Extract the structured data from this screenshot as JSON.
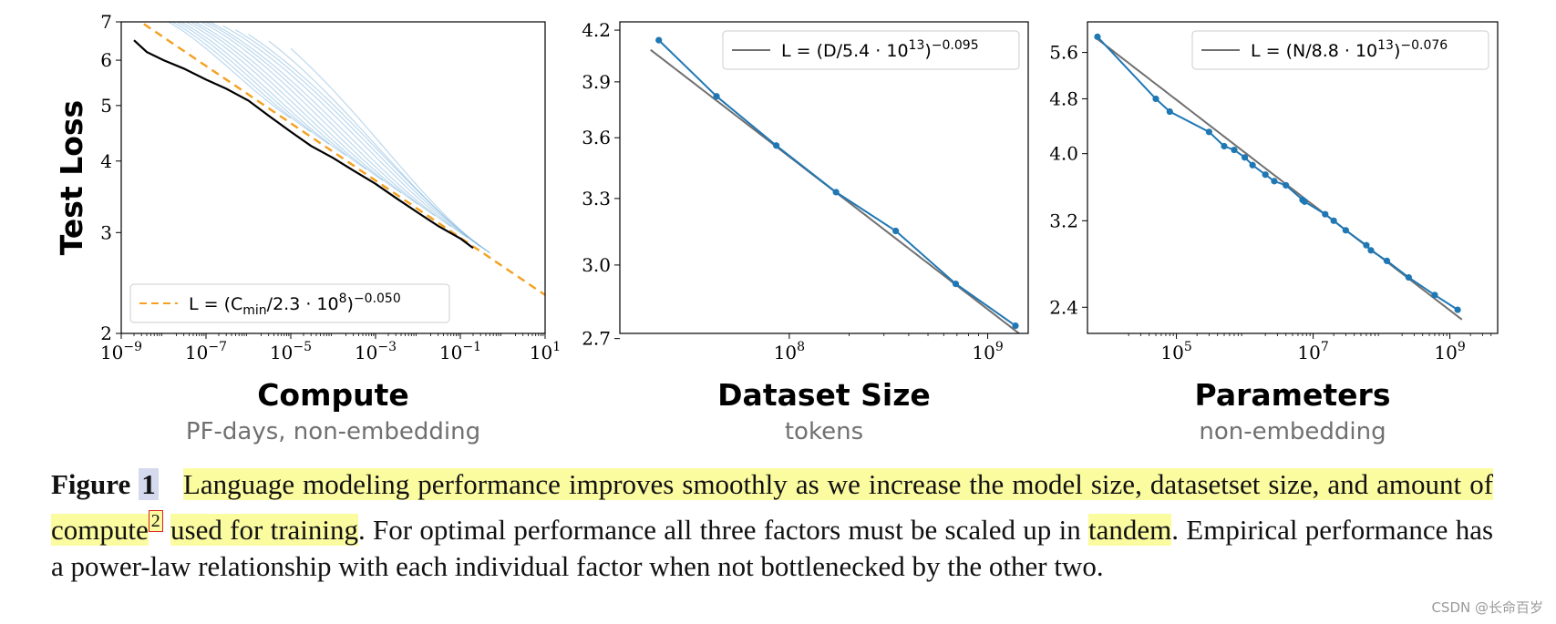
{
  "chart_data": [
    {
      "type": "line",
      "panel": "compute",
      "xscale": "log",
      "yscale": "log",
      "xlim": [
        1e-09,
        10
      ],
      "ylim": [
        2,
        7
      ],
      "xlabel": "Compute",
      "xsublabel": "PF-days, non-embedding",
      "ylabel": "Test Loss",
      "x_ticks": [
        {
          "v": 1e-09,
          "base": "10",
          "exp": "−9"
        },
        {
          "v": 1e-07,
          "base": "10",
          "exp": "−7"
        },
        {
          "v": 1e-05,
          "base": "10",
          "exp": "−5"
        },
        {
          "v": 0.001,
          "base": "10",
          "exp": "−3"
        },
        {
          "v": 0.1,
          "base": "10",
          "exp": "−1"
        },
        {
          "v": 10,
          "base": "10",
          "exp": "1"
        }
      ],
      "y_ticks": [
        {
          "v": 2,
          "label": "2"
        },
        {
          "v": 3,
          "label": "3"
        },
        {
          "v": 4,
          "label": "4"
        },
        {
          "v": 5,
          "label": "5"
        },
        {
          "v": 6,
          "label": "6"
        },
        {
          "v": 7,
          "label": "7"
        }
      ],
      "fit": {
        "coef": 230000000.0,
        "exponent": 0.05,
        "x_range": [
          1e-09,
          10
        ],
        "color": "#f5a020"
      },
      "frontier": {
        "x": [
          2e-09,
          4e-09,
          1e-08,
          3e-08,
          1e-07,
          3e-07,
          1e-06,
          3e-06,
          1e-05,
          3e-05,
          0.0001,
          0.0003,
          0.001,
          0.003,
          0.01,
          0.03,
          0.1,
          0.2
        ],
        "y": [
          6.5,
          6.2,
          6.0,
          5.8,
          5.55,
          5.35,
          5.1,
          4.8,
          4.5,
          4.25,
          4.05,
          3.85,
          3.65,
          3.45,
          3.25,
          3.08,
          2.93,
          2.82
        ]
      },
      "training_curves": [
        {
          "x_start": 1e-09,
          "x_end": 1e-05
        },
        {
          "x_start": 1.5e-09,
          "x_end": 3e-05
        },
        {
          "x_start": 2.5e-09,
          "x_end": 8e-05
        },
        {
          "x_start": 4e-09,
          "x_end": 0.0002
        },
        {
          "x_start": 7e-09,
          "x_end": 0.0006
        },
        {
          "x_start": 1.2e-08,
          "x_end": 0.0015
        },
        {
          "x_start": 2e-08,
          "x_end": 0.004
        },
        {
          "x_start": 4e-08,
          "x_end": 0.01
        },
        {
          "x_start": 7e-08,
          "x_end": 0.025
        },
        {
          "x_start": 1.2e-07,
          "x_end": 0.06
        },
        {
          "x_start": 2.5e-07,
          "x_end": 0.15
        },
        {
          "x_start": 5e-07,
          "x_end": 0.3
        },
        {
          "x_start": 1e-06,
          "x_end": 0.5
        },
        {
          "x_start": 3e-06,
          "x_end": 0.4
        },
        {
          "x_start": 1e-05,
          "x_end": 0.5
        }
      ],
      "legend": {
        "location": "lower-left",
        "prefix": "L = (C",
        "sub": "min",
        "mid": "/2.3 · 10",
        "sup1": "8",
        "close": ")",
        "sup2": "−0.050"
      }
    },
    {
      "type": "line",
      "panel": "dataset",
      "xscale": "log",
      "yscale": "log",
      "xlim": [
        14000000.0,
        1600000000.0
      ],
      "ylim": [
        2.72,
        4.25
      ],
      "xlabel": "Dataset Size",
      "xsublabel": "tokens",
      "ylabel": "",
      "x_ticks": [
        {
          "v": 100000000.0,
          "base": "10",
          "exp": "8"
        },
        {
          "v": 1000000000.0,
          "base": "10",
          "exp": "9"
        }
      ],
      "y_ticks": [
        {
          "v": 2.7,
          "label": "2.7"
        },
        {
          "v": 3.0,
          "label": "3.0"
        },
        {
          "v": 3.3,
          "label": "3.3"
        },
        {
          "v": 3.6,
          "label": "3.6"
        },
        {
          "v": 3.9,
          "label": "3.9"
        },
        {
          "v": 4.2,
          "label": "4.2"
        }
      ],
      "series": [
        {
          "name": "empirical",
          "color": "#1f77b4",
          "x": [
            22000000.0,
            43000000.0,
            86000000.0,
            172000000.0,
            344000000.0,
            690000000.0,
            1380000000.0
          ],
          "y": [
            4.14,
            3.82,
            3.56,
            3.33,
            3.15,
            2.92,
            2.75
          ]
        }
      ],
      "fit": {
        "coef": 54000000000000.0,
        "exponent": 0.095,
        "x_range": [
          20000000.0,
          1450000000.0
        ],
        "color": "#707070"
      },
      "legend": {
        "location": "top-right",
        "prefix": "L = (D/5.4 · 10",
        "sup1": "13",
        "close": ")",
        "sup2": "−0.095"
      }
    },
    {
      "type": "line",
      "panel": "parameters",
      "xscale": "log",
      "yscale": "log",
      "xlim": [
        5000.0,
        5000000000.0
      ],
      "ylim": [
        2.2,
        6.2
      ],
      "xlabel": "Parameters",
      "xsublabel": "non-embedding",
      "ylabel": "",
      "x_ticks": [
        {
          "v": 100000.0,
          "base": "10",
          "exp": "5"
        },
        {
          "v": 10000000.0,
          "base": "10",
          "exp": "7"
        },
        {
          "v": 1000000000.0,
          "base": "10",
          "exp": "9"
        }
      ],
      "y_ticks": [
        {
          "v": 2.4,
          "label": "2.4"
        },
        {
          "v": 3.2,
          "label": "3.2"
        },
        {
          "v": 4.0,
          "label": "4.0"
        },
        {
          "v": 4.8,
          "label": "4.8"
        },
        {
          "v": 5.6,
          "label": "5.6"
        }
      ],
      "series": [
        {
          "name": "empirical",
          "color": "#1f77b4",
          "x": [
            7000.0,
            50000.0,
            80000.0,
            300000.0,
            500000.0,
            700000.0,
            1000000.0,
            1300000.0,
            2000000.0,
            2700000.0,
            4000000.0,
            7000000.0,
            7500000.0,
            15000000.0,
            20000000.0,
            30000000.0,
            60000000.0,
            70000000.0,
            120000000.0,
            250000000.0,
            600000000.0,
            1300000000.0
          ],
          "y": [
            5.9,
            4.8,
            4.6,
            4.3,
            4.1,
            4.05,
            3.95,
            3.85,
            3.73,
            3.65,
            3.6,
            3.43,
            3.41,
            3.27,
            3.2,
            3.1,
            2.95,
            2.9,
            2.8,
            2.65,
            2.5,
            2.38
          ]
        }
      ],
      "fit": {
        "coef": 88000000000000.0,
        "exponent": 0.076,
        "x_range": [
          7000.0,
          1500000000.0
        ],
        "color": "#707070"
      },
      "legend": {
        "location": "top-right",
        "prefix": "L = (N/8.8 · 10",
        "sup1": "13",
        "close": ")",
        "sup2": "−0.076"
      }
    }
  ],
  "caption": {
    "label": "Figure",
    "number": "1",
    "highlight1": "Language modeling performance improves smoothly as we increase the model size, datasetset size, and amount of compute",
    "footnote": "2",
    "highlight2": "used for training",
    "text1": ". For optimal performance all three factors must be scaled up in",
    "highlight3": "tandem",
    "text2": ". Empirical performance has a power-law relationship with each individual factor when not bottlenecked by the other two."
  },
  "watermark": "CSDN @长命百岁️"
}
